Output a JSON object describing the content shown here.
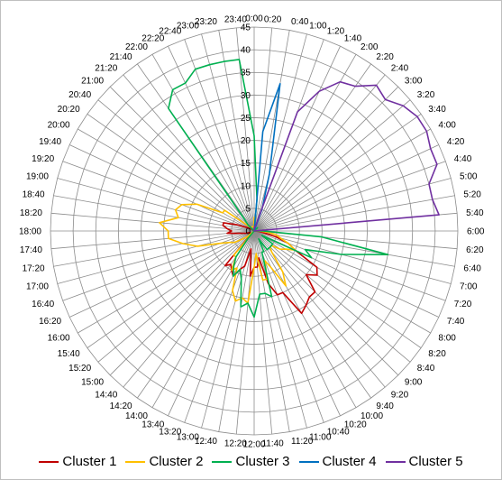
{
  "chart_data": {
    "type": "radar",
    "title": "",
    "categories": [
      "0:00",
      "0:20",
      "0:40",
      "1:00",
      "1:20",
      "1:40",
      "2:00",
      "2:20",
      "2:40",
      "3:00",
      "3:20",
      "3:40",
      "4:00",
      "4:20",
      "4:40",
      "5:00",
      "5:20",
      "5:40",
      "6:00",
      "6:20",
      "6:40",
      "7:00",
      "7:20",
      "7:40",
      "8:00",
      "8:20",
      "8:40",
      "9:00",
      "9:20",
      "9:40",
      "10:00",
      "10:20",
      "10:40",
      "11:00",
      "11:20",
      "11:40",
      "12:00",
      "12:20",
      "12:40",
      "13:00",
      "13:20",
      "13:40",
      "14:00",
      "14:20",
      "14:40",
      "15:00",
      "15:20",
      "15:40",
      "16:00",
      "16:20",
      "16:40",
      "17:00",
      "17:20",
      "17:40",
      "18:00",
      "18:20",
      "18:40",
      "19:00",
      "19:20",
      "19:40",
      "20:00",
      "20:20",
      "20:40",
      "21:00",
      "21:20",
      "21:40",
      "22:00",
      "22:20",
      "22:40",
      "23:00",
      "23:20",
      "23:40"
    ],
    "radial_ticks": [
      "0",
      "5",
      "10",
      "15",
      "20",
      "25",
      "30",
      "35",
      "40",
      "45"
    ],
    "rmax": 45,
    "legend_position": "bottom",
    "series": [
      {
        "name": "Cluster 1",
        "color": "#c00000",
        "values": [
          1,
          1,
          0,
          0,
          0,
          0,
          0,
          0,
          0,
          0,
          0,
          0,
          0,
          0,
          0,
          0,
          0,
          0,
          0,
          1,
          2,
          5,
          8,
          10,
          16,
          17,
          15,
          19,
          19,
          20,
          21,
          15,
          15,
          12,
          6,
          8,
          8,
          10,
          4,
          8,
          9,
          11,
          10,
          9,
          10,
          1,
          1,
          1,
          1,
          1,
          1,
          2,
          3,
          6,
          5,
          6,
          7,
          7,
          4,
          2,
          1,
          1,
          0,
          0,
          0,
          0,
          0,
          0,
          0,
          0,
          0,
          0
        ]
      },
      {
        "name": "Cluster 2",
        "color": "#ffc000",
        "values": [
          3,
          0,
          0,
          0,
          0,
          0,
          0,
          0,
          0,
          0,
          0,
          0,
          0,
          0,
          0,
          0,
          0,
          0,
          1,
          3,
          5,
          6,
          8,
          10,
          8,
          7,
          5,
          5,
          6,
          11,
          14,
          9,
          7,
          11,
          11,
          5,
          8,
          16,
          15,
          16,
          14,
          9,
          10,
          7,
          7,
          0,
          2,
          3,
          5,
          6,
          8,
          13,
          16,
          19,
          19,
          21,
          17,
          18,
          17,
          14,
          8,
          8,
          2,
          1,
          1,
          1,
          1,
          1,
          1,
          1,
          1,
          1
        ]
      },
      {
        "name": "Cluster 3",
        "color": "#00b050",
        "values": [
          21,
          7,
          0,
          0,
          0,
          0,
          0,
          0,
          0,
          1,
          0,
          0,
          0,
          0,
          0,
          0,
          0,
          0,
          2,
          15,
          30,
          20,
          12,
          14,
          2,
          5,
          5,
          5,
          5,
          5,
          2,
          5,
          5,
          15,
          14,
          14,
          19,
          16,
          17,
          11,
          9,
          11,
          9,
          7,
          2,
          0,
          0,
          0,
          0,
          0,
          0,
          0,
          0,
          0,
          0,
          0,
          0,
          0,
          0,
          0,
          0,
          0,
          0,
          2,
          3,
          33,
          36,
          36,
          38,
          38,
          38,
          38
        ]
      },
      {
        "name": "Cluster 4",
        "color": "#0070c0",
        "values": [
          0,
          22,
          33,
          13,
          5,
          0,
          0,
          0,
          0,
          0,
          0,
          0,
          0,
          0,
          0,
          0,
          0,
          0,
          0,
          0,
          0,
          0,
          0,
          0,
          0,
          0,
          0,
          0,
          0,
          0,
          0,
          0,
          0,
          0,
          0,
          0,
          0,
          0,
          0,
          0,
          0,
          0,
          0,
          0,
          0,
          0,
          0,
          0,
          0,
          0,
          0,
          0,
          0,
          0,
          0,
          0,
          0,
          0,
          0,
          0,
          0,
          0,
          0,
          0,
          0,
          0,
          0,
          0,
          0,
          0,
          0,
          0
        ]
      },
      {
        "name": "Cluster 5",
        "color": "#7030a0",
        "values": [
          0,
          1,
          1,
          1,
          28,
          34,
          38,
          39,
          42,
          41,
          43,
          44,
          44,
          43,
          43,
          40,
          40,
          41,
          0,
          0,
          0,
          0,
          0,
          0,
          0,
          0,
          0,
          0,
          0,
          0,
          0,
          0,
          0,
          0,
          0,
          0,
          0,
          0,
          0,
          0,
          0,
          0,
          0,
          0,
          0,
          0,
          0,
          0,
          0,
          0,
          0,
          0,
          0,
          0,
          0,
          0,
          0,
          0,
          0,
          0,
          0,
          0,
          0,
          0,
          0,
          0,
          0,
          0,
          0,
          0,
          0,
          0
        ]
      }
    ]
  }
}
